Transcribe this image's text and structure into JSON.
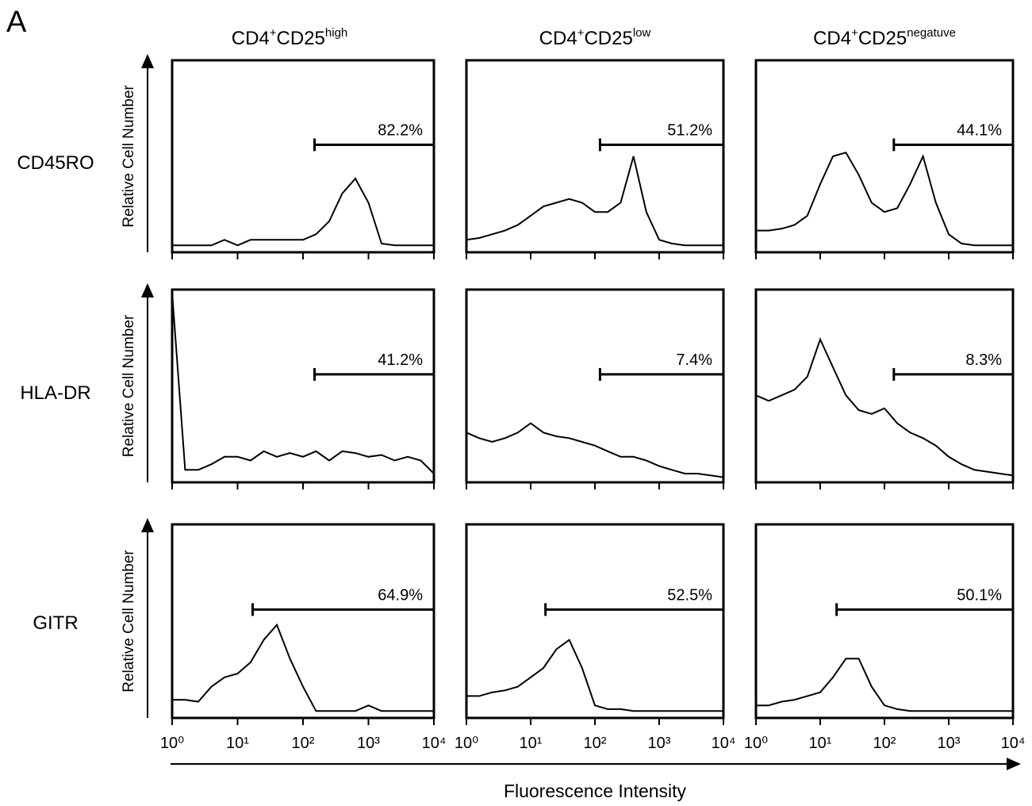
{
  "panel_label": "A",
  "columns": [
    {
      "main": "CD4",
      "sup": "+",
      "main2": "CD25",
      "sup2": "high"
    },
    {
      "main": "CD4",
      "sup": "+",
      "main2": "CD25",
      "sup2": "low"
    },
    {
      "main": "CD4",
      "sup": "+",
      "main2": "CD25",
      "sup2": "negatuve"
    }
  ],
  "rows": [
    "CD45RO",
    "HLA-DR",
    "GITR"
  ],
  "y_label": "Relative Cell Number",
  "x_label": "Fluorescence Intensity",
  "chart_data": [
    {
      "type": "line",
      "xscale": "log",
      "xlim": [
        1,
        10000
      ],
      "ylim": [
        0,
        100
      ],
      "xticks": [
        1,
        10,
        100,
        1000,
        10000
      ],
      "x": [
        1,
        1.58,
        2.51,
        3.98,
        6.31,
        10,
        15.8,
        25.1,
        39.8,
        63.1,
        100,
        158,
        251,
        398,
        631,
        1000,
        1585,
        2512,
        3981,
        6310,
        10000
      ],
      "series": [
        {
          "color": "#000000",
          "values": [
            2,
            2,
            2,
            2,
            5,
            2,
            5,
            5,
            5,
            5,
            5,
            8,
            15,
            30,
            38,
            25,
            3,
            2,
            2,
            2,
            2
          ]
        }
      ],
      "gate_start": 150,
      "gate_value": 82.2,
      "gate_label": "82.2%"
    },
    {
      "type": "line",
      "xscale": "log",
      "xlim": [
        1,
        10000
      ],
      "ylim": [
        0,
        100
      ],
      "xticks": [
        1,
        10,
        100,
        1000,
        10000
      ],
      "x": [
        1,
        1.58,
        2.51,
        3.98,
        6.31,
        10,
        15.8,
        25.1,
        39.8,
        63.1,
        100,
        158,
        251,
        398,
        631,
        1000,
        1585,
        2512,
        3981,
        6310,
        10000
      ],
      "series": [
        {
          "color": "#000000",
          "values": [
            5,
            6,
            8,
            10,
            13,
            18,
            23,
            25,
            27,
            25,
            20,
            20,
            25,
            50,
            20,
            5,
            3,
            2,
            2,
            2,
            2
          ]
        }
      ],
      "gate_start": 120,
      "gate_value": 51.2,
      "gate_label": "51.2%"
    },
    {
      "type": "line",
      "xscale": "log",
      "xlim": [
        1,
        10000
      ],
      "ylim": [
        0,
        100
      ],
      "xticks": [
        1,
        10,
        100,
        1000,
        10000
      ],
      "x": [
        1,
        1.58,
        2.51,
        3.98,
        6.31,
        10,
        15.8,
        25.1,
        39.8,
        63.1,
        100,
        158,
        251,
        398,
        631,
        1000,
        1585,
        2512,
        3981,
        6310,
        10000
      ],
      "series": [
        {
          "color": "#000000",
          "values": [
            10,
            10,
            11,
            13,
            18,
            35,
            50,
            52,
            40,
            25,
            20,
            22,
            35,
            50,
            25,
            8,
            3,
            2,
            2,
            2,
            2
          ]
        }
      ],
      "gate_start": 140,
      "gate_value": 44.1,
      "gate_label": "44.1%"
    },
    {
      "type": "line",
      "xscale": "log",
      "xlim": [
        1,
        10000
      ],
      "ylim": [
        0,
        100
      ],
      "xticks": [
        1,
        10,
        100,
        1000,
        10000
      ],
      "x": [
        1,
        1.58,
        2.51,
        3.98,
        6.31,
        10,
        15.8,
        25.1,
        39.8,
        63.1,
        100,
        158,
        251,
        398,
        631,
        1000,
        1585,
        2512,
        3981,
        6310,
        10000
      ],
      "series": [
        {
          "color": "#000000",
          "values": [
            100,
            5,
            5,
            8,
            12,
            12,
            10,
            15,
            12,
            14,
            12,
            15,
            10,
            15,
            14,
            12,
            13,
            10,
            12,
            10,
            3
          ]
        }
      ],
      "gate_start": 150,
      "gate_value": 41.2,
      "gate_label": "41.2%"
    },
    {
      "type": "line",
      "xscale": "log",
      "xlim": [
        1,
        10000
      ],
      "ylim": [
        0,
        100
      ],
      "xticks": [
        1,
        10,
        100,
        1000,
        10000
      ],
      "x": [
        1,
        1.58,
        2.51,
        3.98,
        6.31,
        10,
        15.8,
        25.1,
        39.8,
        63.1,
        100,
        158,
        251,
        398,
        631,
        1000,
        1585,
        2512,
        3981,
        6310,
        10000
      ],
      "series": [
        {
          "color": "#000000",
          "values": [
            25,
            22,
            20,
            22,
            25,
            30,
            25,
            23,
            22,
            20,
            18,
            15,
            12,
            12,
            10,
            7,
            5,
            3,
            3,
            2,
            1
          ]
        }
      ],
      "gate_start": 120,
      "gate_value": 7.4,
      "gate_label": "7.4%"
    },
    {
      "type": "line",
      "xscale": "log",
      "xlim": [
        1,
        10000
      ],
      "ylim": [
        0,
        100
      ],
      "xticks": [
        1,
        10,
        100,
        1000,
        10000
      ],
      "x": [
        1,
        1.58,
        2.51,
        3.98,
        6.31,
        10,
        15.8,
        25.1,
        39.8,
        63.1,
        100,
        158,
        251,
        398,
        631,
        1000,
        1585,
        2512,
        3981,
        6310,
        10000
      ],
      "series": [
        {
          "color": "#000000",
          "values": [
            45,
            42,
            45,
            48,
            55,
            75,
            60,
            45,
            37,
            35,
            38,
            30,
            25,
            22,
            18,
            12,
            8,
            5,
            4,
            3,
            2
          ]
        }
      ],
      "gate_start": 140,
      "gate_value": 8.3,
      "gate_label": "8.3%"
    },
    {
      "type": "line",
      "xscale": "log",
      "xlim": [
        1,
        10000
      ],
      "ylim": [
        0,
        100
      ],
      "xticks": [
        {
          "value": 1,
          "label": "10⁰"
        },
        {
          "value": 10,
          "label": "10¹"
        },
        {
          "value": 100,
          "label": "10²"
        },
        {
          "value": 1000,
          "label": "10³"
        },
        {
          "value": 10000,
          "label": "10⁴"
        }
      ],
      "x": [
        1,
        1.58,
        2.51,
        3.98,
        6.31,
        10,
        15.8,
        25.1,
        39.8,
        63.1,
        100,
        158,
        251,
        398,
        631,
        1000,
        1585,
        2512,
        3981,
        6310,
        10000
      ],
      "series": [
        {
          "color": "#000000",
          "values": [
            8,
            8,
            7,
            15,
            20,
            22,
            28,
            40,
            48,
            30,
            15,
            2,
            2,
            2,
            2,
            5,
            2,
            2,
            2,
            2,
            2
          ]
        }
      ],
      "gate_start": 17,
      "gate_value": 64.9,
      "gate_label": "64.9%"
    },
    {
      "type": "line",
      "xscale": "log",
      "xlim": [
        1,
        10000
      ],
      "ylim": [
        0,
        100
      ],
      "xticks": [
        {
          "value": 1,
          "label": "10⁰"
        },
        {
          "value": 10,
          "label": "10¹"
        },
        {
          "value": 100,
          "label": "10²"
        },
        {
          "value": 1000,
          "label": "10³"
        },
        {
          "value": 10000,
          "label": "10⁴"
        }
      ],
      "x": [
        1,
        1.58,
        2.51,
        3.98,
        6.31,
        10,
        15.8,
        25.1,
        39.8,
        63.1,
        100,
        158,
        251,
        398,
        631,
        1000,
        1585,
        2512,
        3981,
        6310,
        10000
      ],
      "series": [
        {
          "color": "#000000",
          "values": [
            10,
            10,
            12,
            13,
            15,
            20,
            25,
            35,
            40,
            25,
            5,
            3,
            3,
            2,
            2,
            2,
            2,
            2,
            2,
            2,
            2
          ]
        }
      ],
      "gate_start": 17,
      "gate_value": 52.5,
      "gate_label": "52.5%"
    },
    {
      "type": "line",
      "xscale": "log",
      "xlim": [
        1,
        10000
      ],
      "ylim": [
        0,
        100
      ],
      "xticks": [
        {
          "value": 1,
          "label": "10⁰"
        },
        {
          "value": 10,
          "label": "10¹"
        },
        {
          "value": 100,
          "label": "10²"
        },
        {
          "value": 1000,
          "label": "10³"
        },
        {
          "value": 10000,
          "label": "10⁴"
        }
      ],
      "x": [
        1,
        1.58,
        2.51,
        3.98,
        6.31,
        10,
        15.8,
        25.1,
        39.8,
        63.1,
        100,
        158,
        251,
        398,
        631,
        1000,
        1585,
        2512,
        3981,
        6310,
        10000
      ],
      "series": [
        {
          "color": "#000000",
          "values": [
            5,
            5,
            7,
            8,
            10,
            12,
            20,
            30,
            30,
            15,
            5,
            3,
            2,
            2,
            2,
            2,
            2,
            2,
            2,
            2,
            2
          ]
        }
      ],
      "gate_start": 18,
      "gate_value": 50.1,
      "gate_label": "50.1%"
    }
  ]
}
